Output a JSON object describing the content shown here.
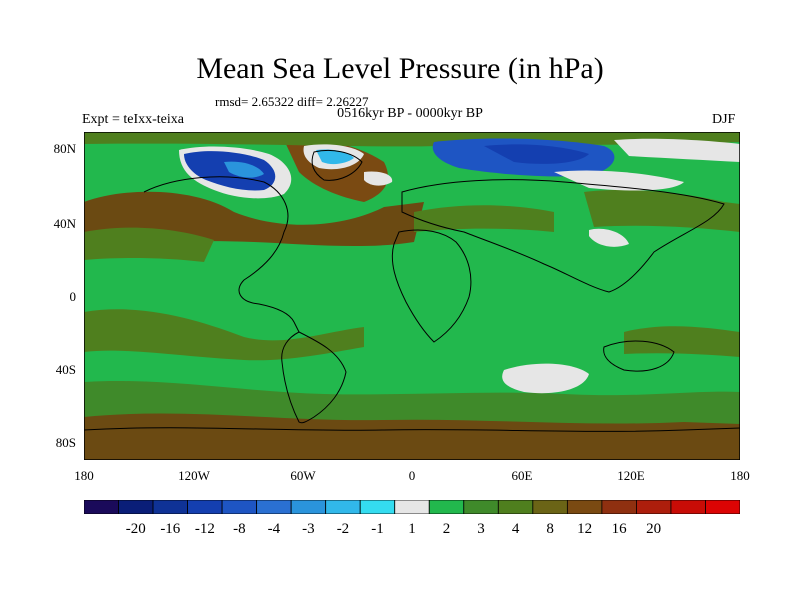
{
  "title": "Mean Sea Level Pressure (in hPa)",
  "stats": "rmsd= 2.65322 diff= 2.26227",
  "period": "0516kyr BP - 0000kyr BP",
  "expt": "Expt = teIxx-teixa",
  "season": "DJF",
  "lat_ticks": [
    "80N",
    "40N",
    "0",
    "40S",
    "80S"
  ],
  "lon_ticks": [
    "180",
    "120W",
    "60W",
    "0",
    "60E",
    "120E",
    "180"
  ],
  "colorbar": {
    "colors": [
      "#1a0a5a",
      "#0a1e78",
      "#0f3296",
      "#143fb0",
      "#1e55c3",
      "#2a70d2",
      "#2a94dc",
      "#31b8ea",
      "#34dcf0",
      "#e6e6e6",
      "#22b84d",
      "#3f8a2a",
      "#4f7f1e",
      "#6b6416",
      "#7a4a12",
      "#8f3010",
      "#ad1e0c",
      "#c80c06",
      "#dc0404"
    ],
    "labels": [
      "-20",
      "-16",
      "-12",
      "-8",
      "-4",
      "-3",
      "-2",
      "-1",
      "1",
      "2",
      "3",
      "4",
      "8",
      "12",
      "16",
      "20"
    ]
  },
  "colors": {
    "bright_green": "#22b84d",
    "mid_green": "#3f8a2a",
    "olive": "#4f7f1e",
    "brown": "#6b4a12",
    "white": "#e6e6e6",
    "blue_dark": "#143fb0",
    "blue_mid": "#1e55c3",
    "cyan": "#31b8ea"
  }
}
